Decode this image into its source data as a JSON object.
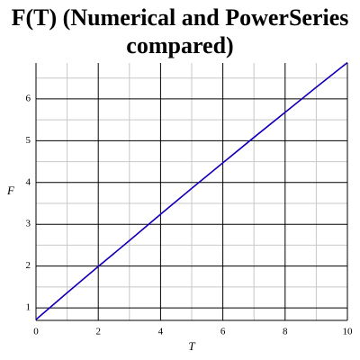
{
  "chart_data": {
    "type": "line",
    "title": "F(T) (Numerical and PowerSeries compared)",
    "x_label": "T",
    "y_label": "F",
    "x": [
      0,
      1,
      2,
      3,
      4,
      5,
      6,
      7,
      8,
      9,
      10
    ],
    "series": [
      {
        "name": "Numerical",
        "color": "#ff0000",
        "values": [
          0.72,
          1.36,
          1.99,
          2.61,
          3.24,
          3.86,
          4.47,
          5.08,
          5.68,
          6.28,
          6.87
        ]
      },
      {
        "name": "PowerSeries",
        "color": "#0000cc",
        "values": [
          0.72,
          1.36,
          1.99,
          2.61,
          3.24,
          3.86,
          4.47,
          5.08,
          5.68,
          6.28,
          6.87
        ]
      }
    ],
    "xlim": [
      0,
      10
    ],
    "ylim": [
      0.7,
      6.86
    ],
    "xticks": [
      0,
      2,
      4,
      6,
      8,
      10
    ],
    "yticks": [
      1,
      2,
      3,
      4,
      5,
      6
    ],
    "xminorticks": [
      1,
      3,
      5,
      7,
      9
    ],
    "yminorticks": [
      1.5,
      2.5,
      3.5,
      4.5,
      5.5,
      6.5
    ],
    "grid": true
  }
}
